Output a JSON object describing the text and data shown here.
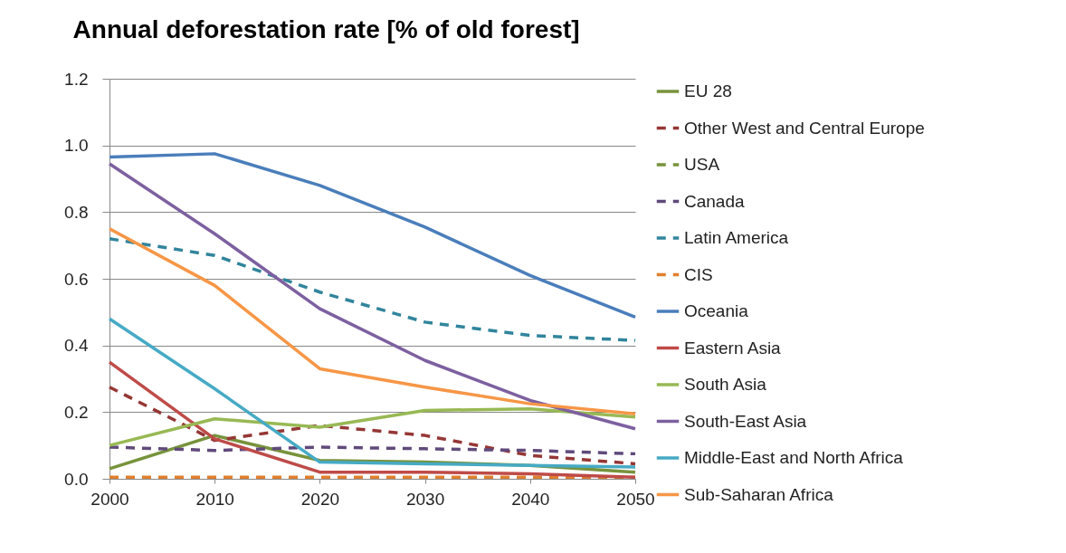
{
  "chart_data": {
    "type": "line",
    "title": "Annual deforestation rate [% of old forest]",
    "x": [
      2000,
      2010,
      2020,
      2030,
      2040,
      2050
    ],
    "xlim": [
      2000,
      2050
    ],
    "xticks": [
      2000,
      2010,
      2020,
      2030,
      2040,
      2050
    ],
    "ylim": [
      0,
      1.2
    ],
    "yticks": [
      {
        "value": 0,
        "label": "0.0"
      },
      0.2,
      0.4,
      0.6,
      0.8,
      {
        "value": 1,
        "label": "1.0"
      },
      1.2
    ],
    "grid": "y",
    "legend": "right",
    "series": [
      {
        "name": "EU 28",
        "color": "#77933c",
        "line_style": "solid",
        "values": [
          0.03,
          0.13,
          0.055,
          0.05,
          0.04,
          0.02
        ]
      },
      {
        "name": "Other West and Central Europe",
        "color": "#953735",
        "line_style": "dashed",
        "values": [
          0.275,
          0.115,
          0.16,
          0.13,
          0.07,
          0.045
        ]
      },
      {
        "name": "USA",
        "color": "#77933c",
        "line_style": "dashed",
        "values": [
          null,
          null,
          null,
          null,
          null,
          null
        ]
      },
      {
        "name": "Canada",
        "color": "#604a7b",
        "line_style": "dashed",
        "values": [
          0.095,
          0.085,
          0.095,
          0.09,
          0.085,
          0.075
        ]
      },
      {
        "name": "Latin America",
        "color": "#31859c",
        "line_style": "dashed",
        "values": [
          0.72,
          0.67,
          0.56,
          0.47,
          0.43,
          0.415
        ]
      },
      {
        "name": "CIS",
        "color": "#e0802f",
        "line_style": "dashed",
        "values": [
          0.005,
          0.005,
          0.005,
          0.005,
          0.005,
          0.005
        ]
      },
      {
        "name": "Oceania",
        "color": "#4a7ebb",
        "line_style": "solid",
        "values": [
          0.965,
          0.975,
          0.88,
          0.755,
          0.61,
          0.485
        ]
      },
      {
        "name": "Eastern Asia",
        "color": "#be4b48",
        "line_style": "solid",
        "values": [
          0.35,
          0.12,
          0.02,
          0.02,
          0.015,
          0.005
        ]
      },
      {
        "name": "South Asia",
        "color": "#98b954",
        "line_style": "solid",
        "values": [
          0.1,
          0.18,
          0.155,
          0.205,
          0.21,
          0.185
        ]
      },
      {
        "name": "South-East Asia",
        "color": "#7d60a0",
        "line_style": "solid",
        "values": [
          0.945,
          0.735,
          0.51,
          0.355,
          0.235,
          0.15
        ]
      },
      {
        "name": "Middle-East and North Africa",
        "color": "#46aac5",
        "line_style": "solid",
        "values": [
          0.48,
          0.27,
          0.05,
          0.045,
          0.04,
          0.035
        ]
      },
      {
        "name": "Sub-Saharan Africa",
        "color": "#f79646",
        "line_style": "solid",
        "values": [
          0.75,
          0.58,
          0.33,
          0.275,
          0.225,
          0.195
        ]
      }
    ]
  }
}
